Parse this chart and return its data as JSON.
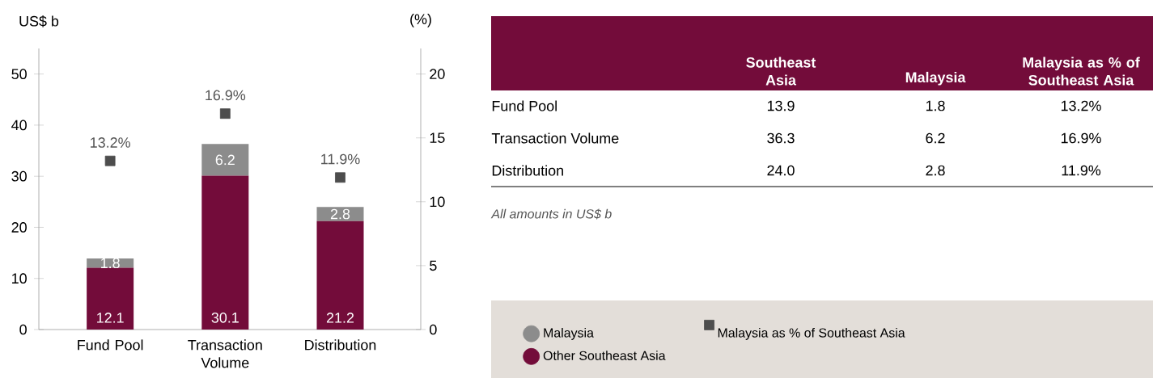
{
  "chart_data": [
    {
      "type": "bar",
      "stacked": true,
      "categories": [
        "Fund Pool",
        "Transaction Volume",
        "Distribution"
      ],
      "ylabel": "US$ b",
      "y2label": "(%)",
      "ylim": [
        0,
        55
      ],
      "yticks": [
        0,
        10,
        20,
        30,
        40,
        50
      ],
      "y2lim": [
        0,
        22
      ],
      "y2ticks": [
        0,
        5,
        10,
        15,
        20
      ],
      "data_labels": true,
      "legend": "bottom right",
      "series": [
        {
          "name": "Other Southeast Asia",
          "color": "#730c3a",
          "values": [
            12.1,
            30.1,
            21.2
          ]
        },
        {
          "name": "Malaysia",
          "color": "#8c8c8c",
          "values": [
            1.8,
            6.2,
            2.8
          ]
        },
        {
          "name": "Malaysia as % of Southeast Asia",
          "type": "scatter",
          "axis": "y2",
          "marker": "square",
          "color": "#4d4d4d",
          "values": [
            13.2,
            16.9,
            11.9
          ],
          "value_labels": [
            "13.2%",
            "16.9%",
            "11.9%"
          ]
        }
      ]
    },
    {
      "type": "other",
      "categories": [
        "Southeast Asia",
        "Malaysia",
        "Malaysia as % of Southeast Asia"
      ],
      "y_categories": [
        "Fund Pool",
        "Transaction Volume",
        "Distribution"
      ],
      "cell_labels": [
        [
          "13.9",
          "1.8",
          "13.2%"
        ],
        [
          "36.3",
          "6.2",
          "16.9%"
        ],
        [
          "24.0",
          "2.8",
          "11.9%"
        ]
      ],
      "annotations": [
        "All amounts in US$ b"
      ]
    }
  ]
}
